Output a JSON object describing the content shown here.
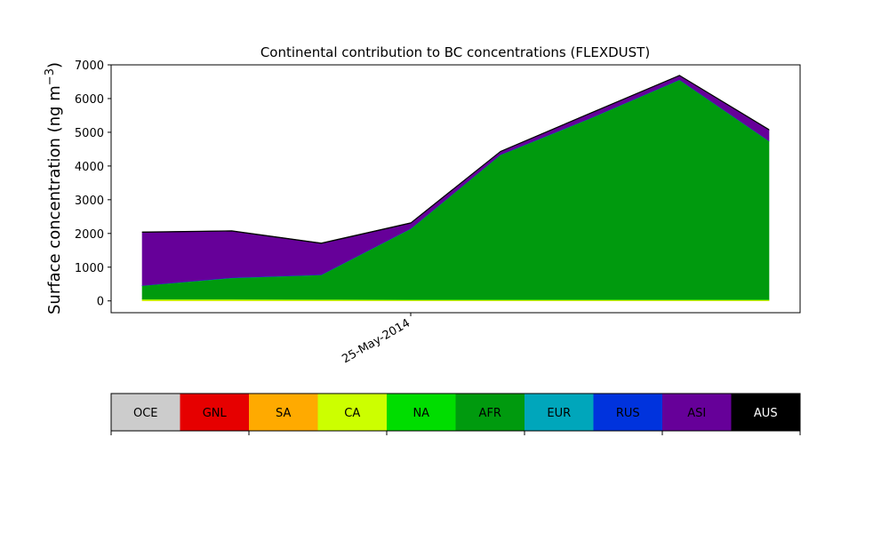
{
  "chart_data": {
    "type": "area",
    "title": "Continental contribution to BC concentrations (FLEXDUST)",
    "ylabel_main": "Surface concentration (ng m",
    "ylabel_sup": "−3",
    "ylabel_close": ")",
    "xlabel": "",
    "ylim": [
      -350,
      7000
    ],
    "yticks": [
      0,
      1000,
      2000,
      3000,
      4000,
      5000,
      6000,
      7000
    ],
    "xtick_labels": [
      "25-May-2014"
    ],
    "x": [
      0,
      1,
      2,
      3,
      4,
      5,
      6,
      7
    ],
    "series": [
      {
        "name": "OCE",
        "color": "#cccccc",
        "values": [
          0,
          0,
          0,
          0,
          0,
          0,
          0,
          0
        ]
      },
      {
        "name": "GNL",
        "color": "#e60000",
        "values": [
          0,
          0,
          0,
          0,
          0,
          0,
          0,
          0
        ]
      },
      {
        "name": "SA",
        "color": "#ffaa00",
        "values": [
          5,
          5,
          5,
          5,
          5,
          5,
          5,
          5
        ]
      },
      {
        "name": "CA",
        "color": "#ccff00",
        "values": [
          40,
          40,
          35,
          30,
          30,
          30,
          30,
          30
        ]
      },
      {
        "name": "NA",
        "color": "#00dd00",
        "values": [
          10,
          10,
          10,
          10,
          10,
          10,
          10,
          10
        ]
      },
      {
        "name": "AFR",
        "color": "#009a0e",
        "values": [
          395,
          625,
          720,
          2095,
          4285,
          5365,
          6510,
          4695
        ]
      },
      {
        "name": "EUR",
        "color": "#00a6bb",
        "values": [
          5,
          5,
          5,
          5,
          5,
          5,
          5,
          5
        ]
      },
      {
        "name": "RUS",
        "color": "#0033dd",
        "values": [
          5,
          5,
          5,
          5,
          5,
          5,
          5,
          5
        ]
      },
      {
        "name": "ASI",
        "color": "#660099",
        "values": [
          1570,
          1375,
          920,
          150,
          80,
          130,
          110,
          320
        ]
      },
      {
        "name": "AUS",
        "color": "#000000",
        "values": [
          20,
          20,
          20,
          20,
          20,
          20,
          20,
          20
        ]
      }
    ],
    "legend_position": "bottom"
  }
}
